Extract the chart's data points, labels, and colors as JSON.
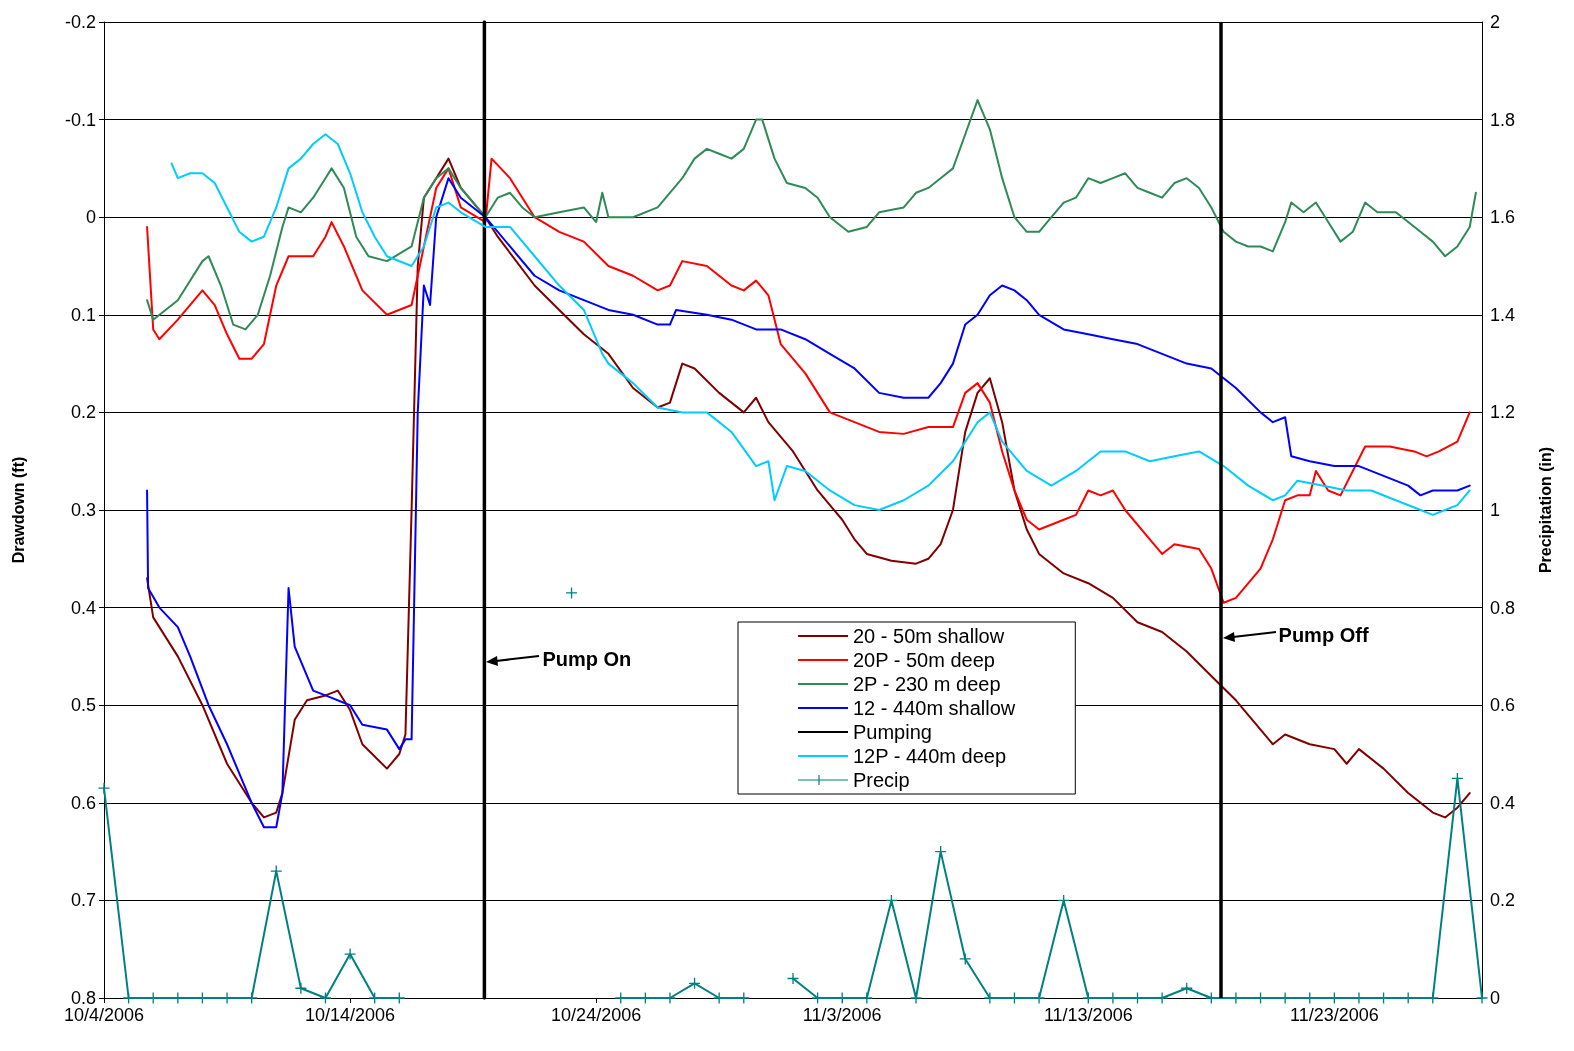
{
  "chart_data": {
    "type": "line",
    "xlabel": null,
    "ylabel": "Drawdown (ft)",
    "y2label": "Precipitation (in)",
    "xlim": [
      "2006-10-04",
      "2006-11-29"
    ],
    "xticks": [
      {
        "value": "2006-10-04",
        "label": "10/4/2006"
      },
      {
        "value": "2006-10-14",
        "label": "10/14/2006"
      },
      {
        "value": "2006-10-24",
        "label": "10/24/2006"
      },
      {
        "value": "2006-11-03",
        "label": "11/3/2006"
      },
      {
        "value": "2006-11-13",
        "label": "11/13/2006"
      },
      {
        "value": "2006-11-23",
        "label": "11/23/2006"
      }
    ],
    "ylim": [
      0.8,
      -0.2
    ],
    "yticks": [
      -0.2,
      -0.1,
      0,
      0.1,
      0.2,
      0.3,
      0.4,
      0.5,
      0.6,
      0.7,
      0.8
    ],
    "y2lim": [
      0,
      2
    ],
    "y2ticks": [
      0,
      0.2,
      0.4,
      0.6,
      0.8,
      1,
      1.2,
      1.4,
      1.6,
      1.8,
      2
    ],
    "ref_lines": [
      {
        "axis": "x",
        "value": "2006-11-18T09:00",
        "label": null,
        "color": "#000000"
      }
    ],
    "grid": "y",
    "legend": "center",
    "marker": "none",
    "line_style": "solid",
    "annotations": [
      {
        "text": "Pump On",
        "x": "2006-10-19T11:00",
        "y": 0.455
      },
      {
        "text": "Pump Off",
        "x": "2006-11-18T09:00",
        "y": 0.43
      }
    ],
    "series": [
      {
        "name": "20 - 50m shallow",
        "color": "#800000",
        "x": [
          "2006-10-05T18:00",
          "2006-10-06T00:00",
          "2006-10-07T00:00",
          "2006-10-08T00:00",
          "2006-10-09T00:00",
          "2006-10-10T00:00",
          "2006-10-10T12:00",
          "2006-10-11T00:00",
          "2006-10-11T06:00",
          "2006-10-11T18:00",
          "2006-10-12T06:00",
          "2006-10-13T00:00",
          "2006-10-13T12:00",
          "2006-10-14T00:00",
          "2006-10-14T12:00",
          "2006-10-15T12:00",
          "2006-10-16T00:00",
          "2006-10-16T06:00",
          "2006-10-16T12:00",
          "2006-10-16T18:00",
          "2006-10-17T00:00",
          "2006-10-17T12:00",
          "2006-10-18T00:00",
          "2006-10-18T12:00",
          "2006-10-19T12:00",
          "2006-10-20T00:00",
          "2006-10-21T12:00",
          "2006-10-22T12:00",
          "2006-10-23T12:00",
          "2006-10-24T12:00",
          "2006-10-25T12:00",
          "2006-10-26T12:00",
          "2006-10-27T00:00",
          "2006-10-27T12:00",
          "2006-10-28T00:00",
          "2006-10-29T00:00",
          "2006-10-30T00:00",
          "2006-10-30T12:00",
          "2006-10-31T00:00",
          "2006-11-01T00:00",
          "2006-11-02T00:00",
          "2006-11-03T00:00",
          "2006-11-03T12:00",
          "2006-11-04T00:00",
          "2006-11-05T00:00",
          "2006-11-06T00:00",
          "2006-11-06T12:00",
          "2006-11-07T00:00",
          "2006-11-07T12:00",
          "2006-11-08T00:00",
          "2006-11-08T12:00",
          "2006-11-09T00:00",
          "2006-11-09T12:00",
          "2006-11-10T00:00",
          "2006-11-10T12:00",
          "2006-11-11T00:00",
          "2006-11-12T00:00",
          "2006-11-13T00:00",
          "2006-11-14T00:00",
          "2006-11-15T00:00",
          "2006-11-16T00:00",
          "2006-11-17T00:00",
          "2006-11-18T00:00",
          "2006-11-19T00:00",
          "2006-11-20T00:00",
          "2006-11-20T12:00",
          "2006-11-21T00:00",
          "2006-11-22T00:00",
          "2006-11-23T00:00",
          "2006-11-23T12:00",
          "2006-11-24T00:00",
          "2006-11-25T00:00",
          "2006-11-26T00:00",
          "2006-11-27T00:00",
          "2006-11-27T12:00",
          "2006-11-28T00:00",
          "2006-11-28T12:00"
        ],
        "values": [
          0.37,
          0.41,
          0.45,
          0.5,
          0.56,
          0.6,
          0.615,
          0.61,
          0.59,
          0.515,
          0.495,
          0.49,
          0.485,
          0.505,
          0.54,
          0.565,
          0.55,
          0.53,
          0.3,
          0.05,
          -0.02,
          -0.04,
          -0.06,
          -0.03,
          0,
          0.02,
          0.07,
          0.095,
          0.12,
          0.14,
          0.175,
          0.195,
          0.19,
          0.15,
          0.155,
          0.18,
          0.2,
          0.185,
          0.21,
          0.24,
          0.28,
          0.31,
          0.33,
          0.345,
          0.352,
          0.355,
          0.35,
          0.335,
          0.3,
          0.22,
          0.18,
          0.165,
          0.21,
          0.28,
          0.32,
          0.345,
          0.365,
          0.375,
          0.39,
          0.415,
          0.425,
          0.445,
          0.47,
          0.495,
          0.525,
          0.54,
          0.53,
          0.54,
          0.545,
          0.56,
          0.545,
          0.565,
          0.59,
          0.61,
          0.615,
          0.605,
          0.59
        ]
      },
      {
        "name": "20P - 50m deep",
        "color": "#ff0000",
        "x": [
          "2006-10-05T18:00",
          "2006-10-06T00:00",
          "2006-10-06T06:00",
          "2006-10-07T00:00",
          "2006-10-08T00:00",
          "2006-10-08T12:00",
          "2006-10-09T00:00",
          "2006-10-09T12:00",
          "2006-10-10T00:00",
          "2006-10-10T12:00",
          "2006-10-11T00:00",
          "2006-10-11T12:00",
          "2006-10-12T12:00",
          "2006-10-13T00:00",
          "2006-10-13T06:00",
          "2006-10-13T18:00",
          "2006-10-14T12:00",
          "2006-10-15T12:00",
          "2006-10-16T12:00",
          "2006-10-17T00:00",
          "2006-10-17T12:00",
          "2006-10-18T00:00",
          "2006-10-18T12:00",
          "2006-10-19T12:00",
          "2006-10-19T18:00",
          "2006-10-20T12:00",
          "2006-10-21T12:00",
          "2006-10-22T12:00",
          "2006-10-23T12:00",
          "2006-10-24T12:00",
          "2006-10-25T12:00",
          "2006-10-26T12:00",
          "2006-10-27T00:00",
          "2006-10-27T12:00",
          "2006-10-28T12:00",
          "2006-10-29T12:00",
          "2006-10-30T00:00",
          "2006-10-30T12:00",
          "2006-10-31T00:00",
          "2006-10-31T12:00",
          "2006-11-01T12:00",
          "2006-11-02T12:00",
          "2006-11-03T12:00",
          "2006-11-04T12:00",
          "2006-11-05T12:00",
          "2006-11-06T12:00",
          "2006-11-07T12:00",
          "2006-11-08T00:00",
          "2006-11-08T12:00",
          "2006-11-09T00:00",
          "2006-11-09T12:00",
          "2006-11-10T00:00",
          "2006-11-10T12:00",
          "2006-11-11T00:00",
          "2006-11-12T00:00",
          "2006-11-12T12:00",
          "2006-11-13T00:00",
          "2006-11-13T12:00",
          "2006-11-14T00:00",
          "2006-11-14T12:00",
          "2006-11-15T12:00",
          "2006-11-16T00:00",
          "2006-11-16T12:00",
          "2006-11-17T12:00",
          "2006-11-18T00:00",
          "2006-11-18T12:00",
          "2006-11-19T00:00",
          "2006-11-20T00:00",
          "2006-11-20T12:00",
          "2006-11-21T00:00",
          "2006-11-21T12:00",
          "2006-11-22T00:00",
          "2006-11-22T06:00",
          "2006-11-22T18:00",
          "2006-11-23T06:00",
          "2006-11-23T18:00",
          "2006-11-24T06:00",
          "2006-11-25T06:00",
          "2006-11-26T06:00",
          "2006-11-26T18:00",
          "2006-11-27T06:00",
          "2006-11-28T00:00",
          "2006-11-28T12:00"
        ],
        "values": [
          0.01,
          0.115,
          0.125,
          0.105,
          0.075,
          0.09,
          0.12,
          0.145,
          0.145,
          0.13,
          0.07,
          0.04,
          0.04,
          0.02,
          0.005,
          0.03,
          0.075,
          0.1,
          0.09,
          0.03,
          -0.03,
          -0.05,
          -0.01,
          0.005,
          -0.06,
          -0.04,
          0,
          0.015,
          0.025,
          0.05,
          0.06,
          0.075,
          0.07,
          0.045,
          0.05,
          0.07,
          0.075,
          0.065,
          0.08,
          0.13,
          0.16,
          0.2,
          0.21,
          0.22,
          0.222,
          0.215,
          0.215,
          0.18,
          0.17,
          0.19,
          0.24,
          0.28,
          0.31,
          0.32,
          0.31,
          0.305,
          0.28,
          0.285,
          0.28,
          0.3,
          0.33,
          0.345,
          0.335,
          0.34,
          0.36,
          0.395,
          0.39,
          0.36,
          0.33,
          0.29,
          0.285,
          0.285,
          0.26,
          0.28,
          0.285,
          0.26,
          0.235,
          0.235,
          0.24,
          0.245,
          0.24,
          0.23,
          0.2
        ]
      },
      {
        "name": "2P - 230 m deep",
        "color": "#2e8b57",
        "x": [
          "2006-10-05T18:00",
          "2006-10-06T00:00",
          "2006-10-07T00:00",
          "2006-10-08T00:00",
          "2006-10-08T06:00",
          "2006-10-08T18:00",
          "2006-10-09T06:00",
          "2006-10-09T18:00",
          "2006-10-10T06:00",
          "2006-10-10T18:00",
          "2006-10-11T06:00",
          "2006-10-11T12:00",
          "2006-10-12T00:00",
          "2006-10-12T12:00",
          "2006-10-13T00:00",
          "2006-10-13T06:00",
          "2006-10-13T18:00",
          "2006-10-14T06:00",
          "2006-10-14T18:00",
          "2006-10-15T12:00",
          "2006-10-16T12:00",
          "2006-10-17T00:00",
          "2006-10-17T12:00",
          "2006-10-18T00:00",
          "2006-10-18T12:00",
          "2006-10-19T12:00",
          "2006-10-20T00:00",
          "2006-10-20T12:00",
          "2006-10-21T00:00",
          "2006-10-21T12:00",
          "2006-10-22T12:00",
          "2006-10-23T12:00",
          "2006-10-24T00:00",
          "2006-10-24T06:00",
          "2006-10-24T12:00",
          "2006-10-25T12:00",
          "2006-10-26T12:00",
          "2006-10-27T12:00",
          "2006-10-28T00:00",
          "2006-10-28T12:00",
          "2006-10-29T00:00",
          "2006-10-29T12:00",
          "2006-10-30T00:00",
          "2006-10-30T12:00",
          "2006-10-30T18:00",
          "2006-10-31T06:00",
          "2006-10-31T18:00",
          "2006-11-01T12:00",
          "2006-11-02T00:00",
          "2006-11-02T12:00",
          "2006-11-03T06:00",
          "2006-11-04T00:00",
          "2006-11-04T12:00",
          "2006-11-05T12:00",
          "2006-11-06T00:00",
          "2006-11-06T12:00",
          "2006-11-07T00:00",
          "2006-11-07T12:00",
          "2006-11-08T00:00",
          "2006-11-08T12:00",
          "2006-11-09T00:00",
          "2006-11-09T12:00",
          "2006-11-10T00:00",
          "2006-11-10T12:00",
          "2006-11-11T00:00",
          "2006-11-11T12:00",
          "2006-11-12T00:00",
          "2006-11-12T12:00",
          "2006-11-13T00:00",
          "2006-11-13T12:00",
          "2006-11-14T00:00",
          "2006-11-14T12:00",
          "2006-11-15T00:00",
          "2006-11-15T12:00",
          "2006-11-16T00:00",
          "2006-11-16T12:00",
          "2006-11-17T00:00",
          "2006-11-17T12:00",
          "2006-11-18T00:00",
          "2006-11-18T12:00",
          "2006-11-19T00:00",
          "2006-11-19T12:00",
          "2006-11-20T00:00",
          "2006-11-20T12:00",
          "2006-11-21T00:00",
          "2006-11-21T06:00",
          "2006-11-21T18:00",
          "2006-11-22T06:00",
          "2006-11-22T18:00",
          "2006-11-23T06:00",
          "2006-11-23T18:00",
          "2006-11-24T06:00",
          "2006-11-24T18:00",
          "2006-11-25T12:00",
          "2006-11-26T00:00",
          "2006-11-26T12:00",
          "2006-11-27T00:00",
          "2006-11-27T12:00",
          "2006-11-28T00:00",
          "2006-11-28T12:00",
          "2006-11-28T18:00"
        ],
        "values": [
          0.085,
          0.105,
          0.085,
          0.045,
          0.04,
          0.07,
          0.11,
          0.115,
          0.1,
          0.06,
          0.01,
          -0.01,
          -0.005,
          -0.02,
          -0.04,
          -0.05,
          -0.03,
          0.02,
          0.04,
          0.045,
          0.03,
          -0.02,
          -0.04,
          -0.05,
          -0.03,
          0,
          -0.02,
          -0.025,
          -0.01,
          0,
          -0.005,
          -0.01,
          0.005,
          -0.025,
          0,
          0,
          -0.01,
          -0.04,
          -0.06,
          -0.07,
          -0.065,
          -0.06,
          -0.07,
          -0.1,
          -0.1,
          -0.06,
          -0.035,
          -0.03,
          -0.02,
          0,
          0.015,
          0.01,
          -0.005,
          -0.01,
          -0.025,
          -0.03,
          -0.04,
          -0.05,
          -0.085,
          -0.12,
          -0.09,
          -0.04,
          0,
          0.015,
          0.015,
          0,
          -0.015,
          -0.02,
          -0.04,
          -0.035,
          -0.04,
          -0.045,
          -0.03,
          -0.025,
          -0.02,
          -0.035,
          -0.04,
          -0.03,
          -0.01,
          0.015,
          0.025,
          0.03,
          0.03,
          0.035,
          0.005,
          -0.015,
          -0.005,
          -0.015,
          0.005,
          0.025,
          0.015,
          -0.015,
          -0.005,
          -0.005,
          0.005,
          0.015,
          0.025,
          0.04,
          0.03,
          0.01,
          -0.025
        ]
      },
      {
        "name": "12 - 440m shallow",
        "color": "#0000ff",
        "x": [
          "2006-10-05T18:00",
          "2006-10-05T19:00",
          "2006-10-06T06:00",
          "2006-10-07T00:00",
          "2006-10-07T12:00",
          "2006-10-08T06:00",
          "2006-10-09T00:00",
          "2006-10-10T00:00",
          "2006-10-10T12:00",
          "2006-10-11T00:00",
          "2006-10-11T06:00",
          "2006-10-11T12:00",
          "2006-10-11T18:00",
          "2006-10-12T12:00",
          "2006-10-13T00:00",
          "2006-10-14T00:00",
          "2006-10-14T12:00",
          "2006-10-15T12:00",
          "2006-10-16T00:00",
          "2006-10-16T06:00",
          "2006-10-16T12:00",
          "2006-10-16T18:00",
          "2006-10-17T00:00",
          "2006-10-17T06:00",
          "2006-10-17T12:00",
          "2006-10-18T00:00",
          "2006-10-18T12:00",
          "2006-10-19T12:00",
          "2006-10-20T12:00",
          "2006-10-21T12:00",
          "2006-10-22T12:00",
          "2006-10-23T12:00",
          "2006-10-24T12:00",
          "2006-10-25T12:00",
          "2006-10-26T12:00",
          "2006-10-27T00:00",
          "2006-10-27T06:00",
          "2006-10-28T12:00",
          "2006-10-29T12:00",
          "2006-10-30T12:00",
          "2006-10-31T12:00",
          "2006-11-01T12:00",
          "2006-11-02T12:00",
          "2006-11-03T12:00",
          "2006-11-04T12:00",
          "2006-11-05T12:00",
          "2006-11-06T12:00",
          "2006-11-07T00:00",
          "2006-11-07T12:00",
          "2006-11-08T00:00",
          "2006-11-08T12:00",
          "2006-11-09T00:00",
          "2006-11-09T12:00",
          "2006-11-10T00:00",
          "2006-11-10T12:00",
          "2006-11-11T00:00",
          "2006-11-12T00:00",
          "2006-11-13T00:00",
          "2006-11-14T00:00",
          "2006-11-15T00:00",
          "2006-11-16T00:00",
          "2006-11-17T00:00",
          "2006-11-18T00:00",
          "2006-11-19T00:00",
          "2006-11-20T00:00",
          "2006-11-20T12:00",
          "2006-11-21T00:00",
          "2006-11-21T06:00",
          "2006-11-22T00:00",
          "2006-11-23T00:00",
          "2006-11-24T00:00",
          "2006-11-25T00:00",
          "2006-11-26T00:00",
          "2006-11-26T12:00",
          "2006-11-27T00:00",
          "2006-11-27T12:00",
          "2006-11-28T00:00",
          "2006-11-28T12:00"
        ],
        "values": [
          0.28,
          0.38,
          0.4,
          0.42,
          0.45,
          0.5,
          0.54,
          0.6,
          0.625,
          0.625,
          0.59,
          0.38,
          0.44,
          0.485,
          0.49,
          0.5,
          0.52,
          0.525,
          0.545,
          0.535,
          0.535,
          0.2,
          0.07,
          0.09,
          0,
          -0.04,
          -0.02,
          0,
          0.03,
          0.06,
          0.075,
          0.085,
          0.095,
          0.1,
          0.11,
          0.11,
          0.095,
          0.1,
          0.105,
          0.115,
          0.115,
          0.125,
          0.14,
          0.155,
          0.18,
          0.185,
          0.185,
          0.17,
          0.15,
          0.11,
          0.1,
          0.08,
          0.07,
          0.075,
          0.085,
          0.1,
          0.115,
          0.12,
          0.125,
          0.13,
          0.14,
          0.15,
          0.155,
          0.175,
          0.2,
          0.21,
          0.205,
          0.245,
          0.25,
          0.255,
          0.255,
          0.265,
          0.275,
          0.285,
          0.28,
          0.28,
          0.28,
          0.275
        ]
      },
      {
        "name": "Pumping",
        "color": "#000000",
        "x": [
          "2006-10-19T11:00",
          "2006-10-19T11:00"
        ],
        "values": [
          -0.2,
          0.8
        ]
      },
      {
        "name": "12P - 440m deep",
        "color": "#00ccff",
        "x": [
          "2006-10-06T18:00",
          "2006-10-07T00:00",
          "2006-10-07T12:00",
          "2006-10-08T00:00",
          "2006-10-08T12:00",
          "2006-10-09T00:00",
          "2006-10-09T12:00",
          "2006-10-10T00:00",
          "2006-10-10T12:00",
          "2006-10-11T00:00",
          "2006-10-11T12:00",
          "2006-10-12T00:00",
          "2006-10-12T12:00",
          "2006-10-13T00:00",
          "2006-10-13T12:00",
          "2006-10-14T00:00",
          "2006-10-14T12:00",
          "2006-10-15T00:00",
          "2006-10-15T12:00",
          "2006-10-16T12:00",
          "2006-10-17T00:00",
          "2006-10-17T12:00",
          "2006-10-18T00:00",
          "2006-10-18T12:00",
          "2006-10-19T12:00",
          "2006-10-20T12:00",
          "2006-10-21T12:00",
          "2006-10-22T12:00",
          "2006-10-23T12:00",
          "2006-10-24T06:00",
          "2006-10-24T12:00",
          "2006-10-25T12:00",
          "2006-10-26T12:00",
          "2006-10-27T12:00",
          "2006-10-28T12:00",
          "2006-10-29T12:00",
          "2006-10-30T12:00",
          "2006-10-31T00:00",
          "2006-10-31T06:00",
          "2006-10-31T18:00",
          "2006-11-01T12:00",
          "2006-11-02T12:00",
          "2006-11-03T12:00",
          "2006-11-04T12:00",
          "2006-11-05T12:00",
          "2006-11-06T12:00",
          "2006-11-07T12:00",
          "2006-11-08T12:00",
          "2006-11-09T00:00",
          "2006-11-09T12:00",
          "2006-11-10T12:00",
          "2006-11-11T12:00",
          "2006-11-12T12:00",
          "2006-11-13T12:00",
          "2006-11-14T12:00",
          "2006-11-15T12:00",
          "2006-11-16T12:00",
          "2006-11-17T12:00",
          "2006-11-18T12:00",
          "2006-11-19T12:00",
          "2006-11-20T12:00",
          "2006-11-21T00:00",
          "2006-11-21T12:00",
          "2006-11-22T12:00",
          "2006-11-23T12:00",
          "2006-11-24T12:00",
          "2006-11-25T12:00",
          "2006-11-26T12:00",
          "2006-11-27T00:00",
          "2006-11-27T12:00",
          "2006-11-28T00:00",
          "2006-11-28T12:00"
        ],
        "values": [
          -0.055,
          -0.04,
          -0.045,
          -0.045,
          -0.035,
          -0.01,
          0.015,
          0.025,
          0.02,
          -0.01,
          -0.05,
          -0.06,
          -0.075,
          -0.085,
          -0.075,
          -0.045,
          -0.005,
          0.02,
          0.04,
          0.05,
          0.03,
          -0.01,
          -0.015,
          -0.005,
          0.01,
          0.01,
          0.04,
          0.07,
          0.095,
          0.14,
          0.15,
          0.17,
          0.195,
          0.2,
          0.2,
          0.22,
          0.255,
          0.25,
          0.29,
          0.255,
          0.26,
          0.28,
          0.295,
          0.3,
          0.29,
          0.275,
          0.25,
          0.21,
          0.2,
          0.23,
          0.26,
          0.275,
          0.26,
          0.24,
          0.24,
          0.25,
          0.245,
          0.24,
          0.255,
          0.275,
          0.29,
          0.285,
          0.27,
          0.275,
          0.28,
          0.28,
          0.29,
          0.3,
          0.305,
          0.3,
          0.295,
          0.28
        ]
      },
      {
        "name": "Precip",
        "color": "#008080",
        "axis": "y2",
        "marker": "cross",
        "x": [
          "2006-10-04",
          "2006-10-05",
          "2006-10-06",
          "2006-10-07",
          "2006-10-08",
          "2006-10-09",
          "2006-10-10",
          "2006-10-11",
          "2006-10-12",
          "2006-10-13",
          "2006-10-14",
          "2006-10-15",
          "2006-10-16",
          "2006-10-17",
          "2006-10-18",
          "2006-10-19",
          "2006-10-20",
          "2006-10-21",
          "2006-10-22",
          "2006-10-23",
          "2006-10-24",
          "2006-10-25",
          "2006-10-26",
          "2006-10-27",
          "2006-10-28",
          "2006-10-29",
          "2006-10-30",
          "2006-10-31",
          "2006-11-01",
          "2006-11-02",
          "2006-11-03",
          "2006-11-04",
          "2006-11-05",
          "2006-11-06",
          "2006-11-07",
          "2006-11-08",
          "2006-11-09",
          "2006-11-10",
          "2006-11-11",
          "2006-11-12",
          "2006-11-13",
          "2006-11-14",
          "2006-11-15",
          "2006-11-16",
          "2006-11-17",
          "2006-11-18",
          "2006-11-19",
          "2006-11-20",
          "2006-11-21",
          "2006-11-22",
          "2006-11-23",
          "2006-11-24",
          "2006-11-25",
          "2006-11-26",
          "2006-11-27",
          "2006-11-28",
          "2006-11-29"
        ],
        "values": [
          0.43,
          0,
          0,
          0,
          0,
          0,
          0,
          0.26,
          0.02,
          0,
          0.09,
          0,
          0,
          null,
          null,
          null,
          null,
          null,
          null,
          0.83,
          null,
          0,
          0,
          0,
          0.03,
          0,
          0,
          null,
          0.04,
          0,
          0,
          0,
          0.2,
          0,
          0.3,
          0.08,
          0,
          0,
          0,
          0.2,
          0,
          0,
          0,
          0,
          0.02,
          0,
          0,
          0,
          0,
          0,
          0,
          0,
          0,
          0,
          0,
          0.45,
          0
        ]
      }
    ]
  }
}
